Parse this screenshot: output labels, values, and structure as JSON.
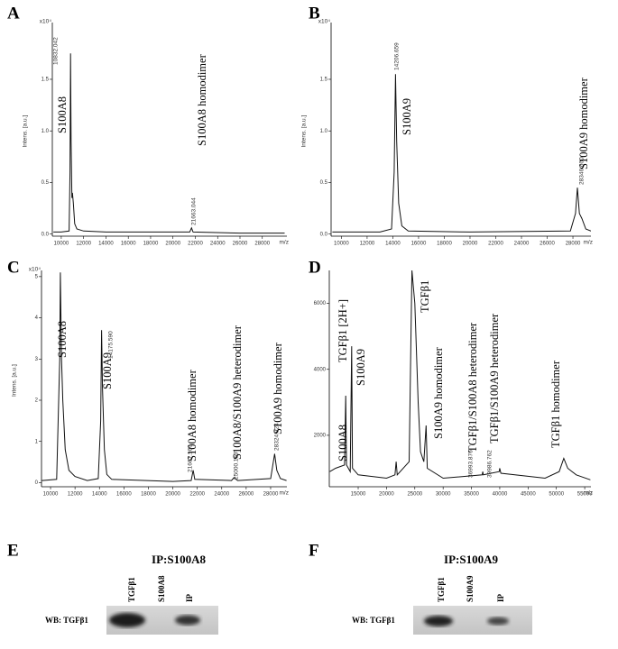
{
  "chart_data": [
    {
      "type": "line",
      "panel": "A",
      "color": "#111111",
      "ylabel": "Intens. [a.u.]",
      "xlabel": "m/z",
      "y_multiplier": "x10⁴",
      "xlim": [
        9200,
        30200
      ],
      "ylim": [
        -0.02,
        2.05
      ],
      "xticks": [
        10000,
        12000,
        14000,
        16000,
        18000,
        20000,
        22000,
        24000,
        26000,
        28000
      ],
      "yticks": [
        {
          "value": 0,
          "label": "0.0"
        },
        {
          "value": 0.5,
          "label": "0.5"
        },
        {
          "value": 1,
          "label": "1.0"
        },
        {
          "value": 1.5,
          "label": "1.5"
        }
      ],
      "x": [
        9300,
        10000,
        10700,
        10780,
        10832,
        10880,
        10950,
        11000,
        11080,
        11200,
        11400,
        12000,
        14000,
        18000,
        21500,
        21663,
        21800,
        26000,
        30000
      ],
      "values": [
        0.02,
        0.02,
        0.03,
        0.6,
        1.75,
        0.9,
        0.35,
        0.4,
        0.3,
        0.1,
        0.05,
        0.03,
        0.02,
        0.02,
        0.02,
        0.06,
        0.02,
        0.01,
        0.01
      ],
      "peak_labels": [
        "10832.042",
        "21663.044"
      ],
      "annotations": [
        "S100A8",
        "S100A8 homodimer"
      ]
    },
    {
      "type": "line",
      "panel": "B",
      "color": "#111111",
      "ylabel": "Intens. [a.u.]",
      "xlabel": "m/z",
      "y_multiplier": "x10⁴",
      "xlim": [
        9200,
        29400
      ],
      "ylim": [
        -0.02,
        2.05
      ],
      "xticks": [
        10000,
        12000,
        14000,
        16000,
        18000,
        20000,
        22000,
        24000,
        26000,
        28000
      ],
      "yticks": [
        {
          "value": 0,
          "label": "0.0"
        },
        {
          "value": 0.5,
          "label": "0.5"
        },
        {
          "value": 1,
          "label": "1.0"
        },
        {
          "value": 1.5,
          "label": "1.5"
        }
      ],
      "x": [
        9300,
        13000,
        13900,
        14100,
        14206,
        14300,
        14450,
        14700,
        15200,
        20000,
        27800,
        28200,
        28346,
        28500,
        28700,
        29000,
        29400
      ],
      "values": [
        0.02,
        0.02,
        0.05,
        0.6,
        1.55,
        0.9,
        0.3,
        0.08,
        0.03,
        0.02,
        0.03,
        0.2,
        0.45,
        0.2,
        0.15,
        0.05,
        0.03
      ],
      "peak_labels": [
        "14206.659",
        "28346.600"
      ],
      "annotations": [
        "S100A9",
        "S100A9 homodimer"
      ]
    },
    {
      "type": "line",
      "panel": "C",
      "color": "#111111",
      "ylabel": "Intens. [a.u.]",
      "xlabel": "m/z",
      "y_multiplier": "x10⁴",
      "xlim": [
        9260,
        29330
      ],
      "ylim": [
        -0.1,
        5.15
      ],
      "xticks": [
        10000,
        12000,
        14000,
        16000,
        18000,
        20000,
        22000,
        24000,
        26000,
        28000
      ],
      "yticks": [
        0,
        1,
        2,
        3,
        4,
        5
      ],
      "x": [
        9300,
        10500,
        10750,
        10800,
        10900,
        11000,
        11200,
        11500,
        12000,
        13000,
        13900,
        14100,
        14175,
        14250,
        14400,
        14600,
        15000,
        20000,
        21500,
        21667,
        21800,
        24800,
        25000,
        25300,
        28000,
        28324,
        28500,
        28800,
        29300
      ],
      "values": [
        0.05,
        0.08,
        3,
        5.1,
        3,
        2,
        0.8,
        0.3,
        0.15,
        0.05,
        0.1,
        1.5,
        3.7,
        2.3,
        0.8,
        0.2,
        0.08,
        0.03,
        0.05,
        0.3,
        0.08,
        0.05,
        0.12,
        0.05,
        0.1,
        0.7,
        0.3,
        0.1,
        0.05
      ],
      "peak_labels": [
        "14175.590",
        "21667.166",
        "25000.159",
        "28324.924"
      ],
      "annotations": [
        "S100A8",
        "S100A9",
        "S100A8 homodimer",
        "S100A8/S100A9 heterodimer",
        "S100A9 homodimer"
      ]
    },
    {
      "type": "line",
      "panel": "D",
      "color": "#111111",
      "xlabel": "m/z",
      "xlim": [
        9900,
        56100
      ],
      "ylim": [
        440,
        7000
      ],
      "xticks": [
        15000,
        20000,
        25000,
        30000,
        35000,
        40000,
        45000,
        50000,
        55000
      ],
      "yticks": [
        2000,
        4000,
        6000
      ],
      "x": [
        10000,
        11000,
        12600,
        12800,
        12950,
        13600,
        13850,
        14000,
        15000,
        20000,
        21500,
        21700,
        21900,
        24000,
        24500,
        25000,
        25600,
        26000,
        26600,
        27000,
        27200,
        30000,
        36900,
        37000,
        37100,
        39900,
        40000,
        40200,
        48000,
        50500,
        51300,
        52000,
        53500,
        56000
      ],
      "values": [
        900,
        1000,
        1100,
        3200,
        1100,
        900,
        4700,
        1000,
        800,
        700,
        800,
        1200,
        800,
        1200,
        7000,
        6000,
        3000,
        1500,
        1200,
        2300,
        1000,
        700,
        800,
        900,
        800,
        900,
        1000,
        850,
        700,
        900,
        1300,
        1000,
        800,
        650
      ],
      "peak_labels": [
        "36993.876",
        "39986.762"
      ],
      "annotations": [
        "S100A8",
        "TGFβ1 [2H+]",
        "S100A9",
        "TGFβ1",
        "S100A9 homodimer",
        "TGFβ1/S100A8 heterodimer",
        "TGFβ1/S100A9 heterodimer",
        "TGFβ1 homodimer"
      ]
    }
  ],
  "blots": [
    {
      "panel": "E",
      "title": "IP:S100A8",
      "lanes": [
        "TGFβ1",
        "S100A8",
        "IP"
      ],
      "row_label": "WB: TGFβ1"
    },
    {
      "panel": "F",
      "title": "IP:S100A9",
      "lanes": [
        "TGFβ1",
        "S100A9",
        "IP"
      ],
      "row_label": "WB: TGFβ1"
    }
  ]
}
